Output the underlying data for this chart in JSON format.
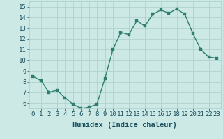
{
  "x": [
    0,
    1,
    2,
    3,
    4,
    5,
    6,
    7,
    8,
    9,
    10,
    11,
    12,
    13,
    14,
    15,
    16,
    17,
    18,
    19,
    20,
    21,
    22,
    23
  ],
  "y": [
    8.5,
    8.1,
    7.0,
    7.2,
    6.5,
    5.9,
    5.5,
    5.6,
    5.9,
    8.3,
    11.0,
    12.6,
    12.4,
    13.7,
    13.2,
    14.3,
    14.7,
    14.4,
    14.8,
    14.3,
    12.5,
    11.0,
    10.3,
    10.2
  ],
  "line_color": "#2e7d6e",
  "marker_color": "#2e7d6e",
  "bg_color": "#cce9e5",
  "grid_color": "#aacfcb",
  "xlabel": "Humidex (Indice chaleur)",
  "ylim": [
    5.5,
    15.5
  ],
  "xlim": [
    -0.5,
    23.5
  ],
  "yticks": [
    6,
    7,
    8,
    9,
    10,
    11,
    12,
    13,
    14,
    15
  ],
  "xticks": [
    0,
    1,
    2,
    3,
    4,
    5,
    6,
    7,
    8,
    9,
    10,
    11,
    12,
    13,
    14,
    15,
    16,
    17,
    18,
    19,
    20,
    21,
    22,
    23
  ],
  "xlabel_fontsize": 7.5,
  "tick_fontsize": 6.5,
  "line_width": 1.0,
  "marker_size": 2.5
}
